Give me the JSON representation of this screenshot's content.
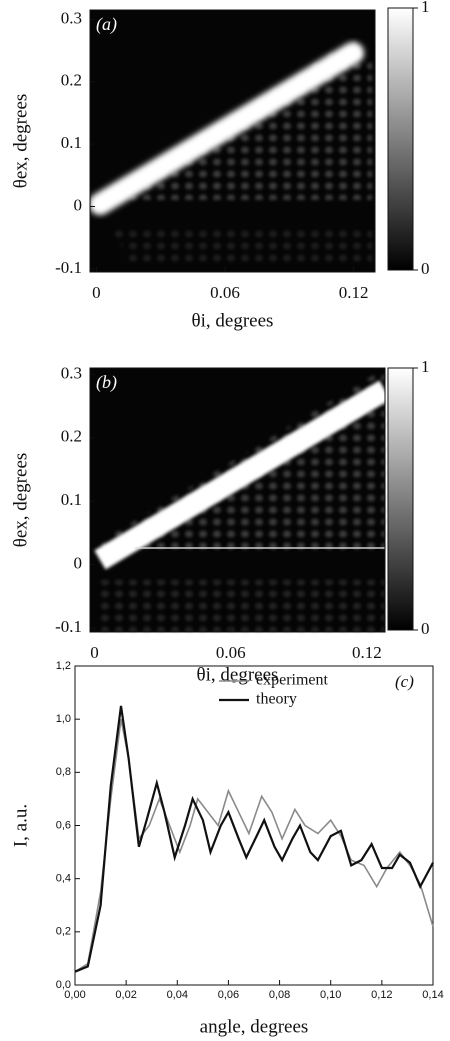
{
  "chart_data": [
    {
      "type": "heatmap",
      "title": "(a)",
      "xlabel": "θi, degrees",
      "ylabel": "θex, degrees",
      "xlim": [
        -0.003,
        0.13
      ],
      "xticks": [
        0,
        0.06,
        0.12
      ],
      "ylim": [
        -0.105,
        0.315
      ],
      "yticks": [
        -0.1,
        0,
        0.1,
        0.2,
        0.3
      ],
      "clim": [
        0,
        1
      ],
      "cticks": [
        0,
        1
      ]
    },
    {
      "type": "heatmap",
      "title": "(b)",
      "xlabel": "θi, degrees",
      "ylabel": "θex, degrees",
      "xlim": [
        -0.002,
        0.128
      ],
      "xticks": [
        0,
        0.06,
        0.12
      ],
      "ylim": [
        -0.106,
        0.31
      ],
      "yticks": [
        -0.1,
        0,
        0.1,
        0.2,
        0.3
      ],
      "clim": [
        0,
        1
      ],
      "cticks": [
        0,
        1
      ]
    },
    {
      "type": "line",
      "title": "(c)",
      "xlabel": "angle, degrees",
      "ylabel": "I, a.u.",
      "xlim": [
        0,
        0.14
      ],
      "xticks": [
        {
          "value": 0,
          "label": "0,00"
        },
        {
          "value": 0.02,
          "label": "0,02"
        },
        {
          "value": 0.04,
          "label": "0,04"
        },
        {
          "value": 0.06,
          "label": "0,06"
        },
        {
          "value": 0.08,
          "label": "0,08"
        },
        {
          "value": 0.1,
          "label": "0,10"
        },
        {
          "value": 0.12,
          "label": "0,12"
        },
        {
          "value": 0.14,
          "label": "0,14"
        }
      ],
      "ylim": [
        0,
        1.2
      ],
      "yticks": [
        {
          "value": 0,
          "label": "0,0"
        },
        {
          "value": 0.2,
          "label": "0,2"
        },
        {
          "value": 0.4,
          "label": "0,4"
        },
        {
          "value": 0.6,
          "label": "0,6"
        },
        {
          "value": 0.8,
          "label": "0,8"
        },
        {
          "value": 1.0,
          "label": "1,0"
        },
        {
          "value": 1.2,
          "label": "1,2"
        }
      ],
      "legend": "upper center",
      "series": [
        {
          "name": "experiment",
          "color": "#8a8a8a",
          "x": [
            0,
            0.005,
            0.01,
            0.014,
            0.018,
            0.021,
            0.025,
            0.029,
            0.033,
            0.037,
            0.041,
            0.045,
            0.048,
            0.052,
            0.056,
            0.06,
            0.064,
            0.068,
            0.073,
            0.077,
            0.081,
            0.086,
            0.09,
            0.095,
            0.1,
            0.104,
            0.108,
            0.113,
            0.118,
            0.122,
            0.127,
            0.131,
            0.135,
            0.14
          ],
          "values": [
            0.05,
            0.08,
            0.35,
            0.7,
            1.0,
            0.85,
            0.55,
            0.6,
            0.7,
            0.6,
            0.5,
            0.6,
            0.7,
            0.65,
            0.6,
            0.73,
            0.65,
            0.57,
            0.71,
            0.65,
            0.55,
            0.66,
            0.6,
            0.57,
            0.62,
            0.56,
            0.47,
            0.45,
            0.37,
            0.44,
            0.5,
            0.45,
            0.38,
            0.22
          ]
        },
        {
          "name": "theory",
          "color": "#111111",
          "x": [
            0,
            0.005,
            0.01,
            0.014,
            0.018,
            0.021,
            0.025,
            0.028,
            0.032,
            0.035,
            0.039,
            0.043,
            0.046,
            0.05,
            0.053,
            0.057,
            0.06,
            0.064,
            0.067,
            0.071,
            0.074,
            0.078,
            0.081,
            0.085,
            0.088,
            0.092,
            0.095,
            0.1,
            0.104,
            0.108,
            0.112,
            0.116,
            0.12,
            0.124,
            0.127,
            0.131,
            0.135,
            0.14
          ],
          "values": [
            0.05,
            0.07,
            0.3,
            0.75,
            1.05,
            0.85,
            0.52,
            0.62,
            0.76,
            0.65,
            0.48,
            0.6,
            0.7,
            0.62,
            0.5,
            0.6,
            0.65,
            0.55,
            0.48,
            0.56,
            0.62,
            0.52,
            0.47,
            0.55,
            0.6,
            0.5,
            0.47,
            0.56,
            0.58,
            0.45,
            0.47,
            0.53,
            0.44,
            0.44,
            0.49,
            0.46,
            0.37,
            0.46
          ]
        }
      ]
    }
  ]
}
